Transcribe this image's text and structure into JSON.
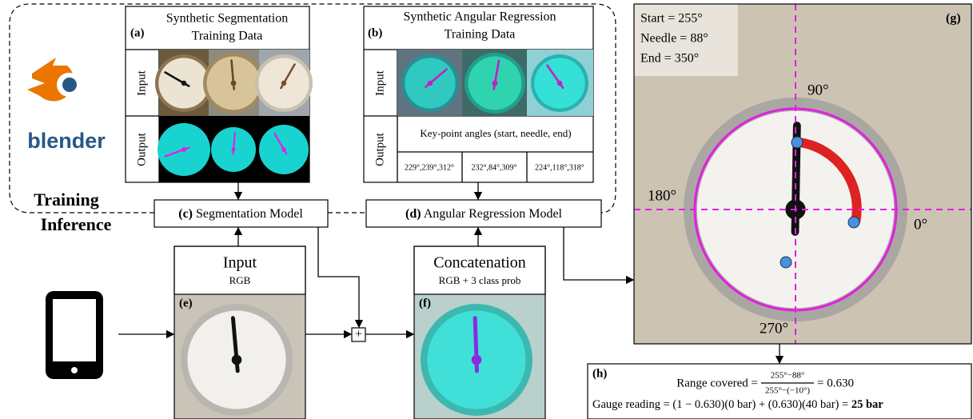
{
  "logo": {
    "text": "blender"
  },
  "phases": {
    "training": "Training",
    "inference": "Inference"
  },
  "panel_a": {
    "tag": "(a)",
    "title": [
      "Synthetic Segmentation",
      "Training Data"
    ],
    "row_labels": [
      "Input",
      "Output"
    ]
  },
  "panel_b": {
    "tag": "(b)",
    "title": [
      "Synthetic Angular Regression",
      "Training Data"
    ],
    "row_labels": [
      "Input",
      "Output"
    ],
    "output_header": "Key-point angles (start, needle, end)",
    "output_values": [
      "229°,239°,312°",
      "232°,84°,309°",
      "224°,118°,318°"
    ]
  },
  "model_c": {
    "tag": "(c)",
    "name": "Segmentation Model"
  },
  "model_d": {
    "tag": "(d)",
    "name": "Angular Regression Model"
  },
  "panel_e": {
    "tag": "(e)",
    "title": "Input",
    "subtitle": "RGB"
  },
  "panel_f": {
    "tag": "(f)",
    "title": "Concatenation",
    "subtitle": "RGB + 3 class prob"
  },
  "operator": "+",
  "panel_g": {
    "tag": "(g)",
    "readouts": [
      "Start = 255°",
      "Needle = 88°",
      "End = 350°"
    ],
    "angles": {
      "top": "90°",
      "left": "180°",
      "right": "0°",
      "bottom": "270°"
    }
  },
  "panel_h": {
    "tag": "(h)",
    "range_label": "Range covered = ",
    "numerator": "255°−88°",
    "denominator": "255°−(−10°)",
    "range_result": "= 0.630",
    "reading": "Gauge reading = (1 − 0.630)(0 bar) + (0.630)(40 bar) = ",
    "result": "25 bar"
  }
}
